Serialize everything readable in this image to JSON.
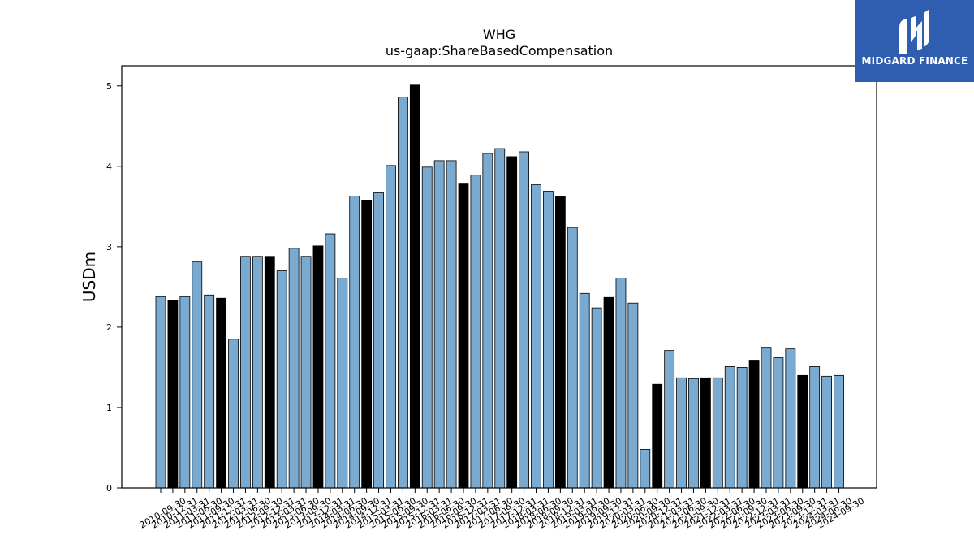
{
  "brand": {
    "name": "MIDGARD FINANCE",
    "logo_icon": "midgard-m-logo-icon",
    "color": "#2f5db0"
  },
  "chart_data": {
    "type": "bar",
    "title": "WHG",
    "subtitle": "us-gaap:ShareBasedCompensation",
    "xlabel": "",
    "ylabel": "USDm",
    "ylim": [
      0,
      5.25
    ],
    "yticks": [
      0,
      1,
      2,
      3,
      4,
      5
    ],
    "grid": false,
    "colors": {
      "default": "#7aaad0",
      "highlight": "#000000",
      "edge": "#000000"
    },
    "categories": [
      "2010-09-30",
      "2010-12-31",
      "2011-03-31",
      "2011-06-30",
      "2011-09-30",
      "2011-12-31",
      "2012-03-31",
      "2012-06-30",
      "2012-09-30",
      "2012-12-31",
      "2013-03-31",
      "2013-06-30",
      "2013-09-30",
      "2013-12-31",
      "2014-03-31",
      "2014-06-30",
      "2014-09-30",
      "2014-12-31",
      "2015-03-31",
      "2015-06-30",
      "2015-09-30",
      "2015-12-31",
      "2016-03-31",
      "2016-06-30",
      "2016-09-30",
      "2016-12-31",
      "2017-03-31",
      "2017-06-30",
      "2017-09-30",
      "2017-12-31",
      "2018-03-31",
      "2018-06-30",
      "2018-09-30",
      "2018-12-31",
      "2019-03-31",
      "2019-06-30",
      "2019-09-30",
      "2019-12-31",
      "2020-03-31",
      "2020-06-30",
      "2020-09-30",
      "2020-12-31",
      "2021-03-31",
      "2021-06-30",
      "2021-09-30",
      "2021-12-31",
      "2022-03-31",
      "2022-06-30",
      "2022-09-30",
      "2022-12-31",
      "2023-03-31",
      "2023-06-30",
      "2023-09-30",
      "2023-12-31",
      "2024-03-31",
      "2024-06-30",
      "2024-09-30"
    ],
    "values": [
      2.38,
      2.33,
      2.38,
      2.81,
      2.4,
      2.36,
      1.85,
      2.88,
      2.88,
      2.88,
      2.7,
      2.98,
      2.88,
      3.01,
      3.16,
      2.61,
      3.63,
      3.58,
      3.67,
      4.01,
      4.86,
      5.01,
      3.99,
      4.07,
      4.07,
      3.78,
      3.89,
      4.16,
      4.22,
      4.12,
      4.18,
      3.77,
      3.69,
      3.62,
      3.24,
      2.42,
      2.24,
      2.37,
      2.61,
      2.3,
      0.48,
      1.29,
      1.71,
      1.37,
      1.36,
      1.37,
      1.37,
      1.51,
      1.5,
      1.58,
      1.74,
      1.62,
      1.73,
      1.4,
      1.51,
      1.39,
      1.4
    ],
    "highlight": [
      false,
      true,
      false,
      false,
      false,
      true,
      false,
      false,
      false,
      true,
      false,
      false,
      false,
      true,
      false,
      false,
      false,
      true,
      false,
      false,
      false,
      true,
      false,
      false,
      false,
      true,
      false,
      false,
      false,
      true,
      false,
      false,
      false,
      true,
      false,
      false,
      false,
      true,
      false,
      false,
      false,
      true,
      false,
      false,
      false,
      true,
      false,
      false,
      false,
      true,
      false,
      false,
      false,
      true,
      false,
      false,
      false
    ]
  }
}
